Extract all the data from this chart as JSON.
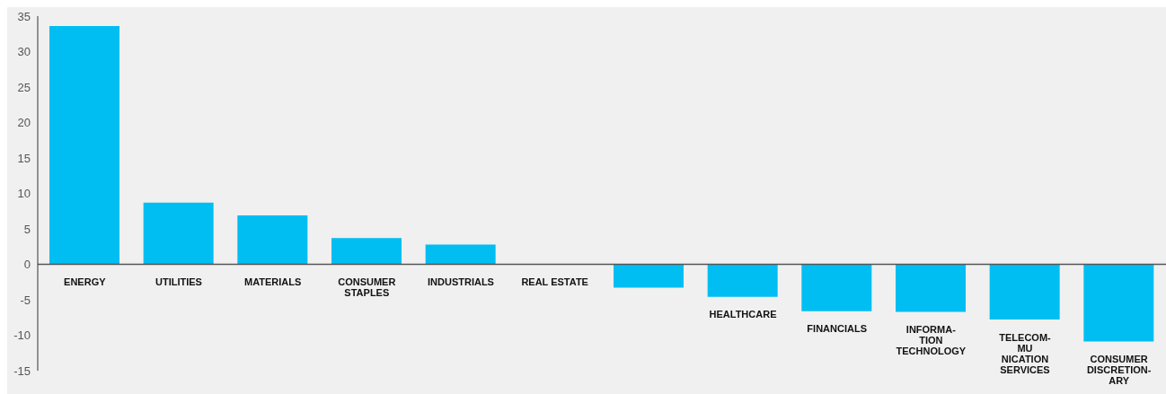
{
  "chart_data": {
    "type": "bar",
    "categories": [
      "ENERGY",
      "UTILITIES",
      "MATERIALS",
      "CONSUMER\nSTAPLES",
      "INDUSTRIALS",
      "REAL ESTATE",
      null,
      "HEALTHCARE",
      "FINANCIALS",
      "INFORMA-\nTION\nTECHNOLOGY",
      "TELECOM-\nMU\nNICATION\nSERVICES",
      "CONSUMER\nDISCRETION-\nARY"
    ],
    "values": [
      33.6,
      8.7,
      6.9,
      3.7,
      2.8,
      0,
      -3.3,
      -4.6,
      -6.6,
      -6.7,
      -7.8,
      -10.9
    ],
    "color": "#00bef2",
    "ylim": [
      -15,
      35
    ],
    "yticks": [
      -15,
      -10,
      -5,
      0,
      5,
      10,
      15,
      20,
      25,
      30,
      35
    ],
    "grid": false
  }
}
